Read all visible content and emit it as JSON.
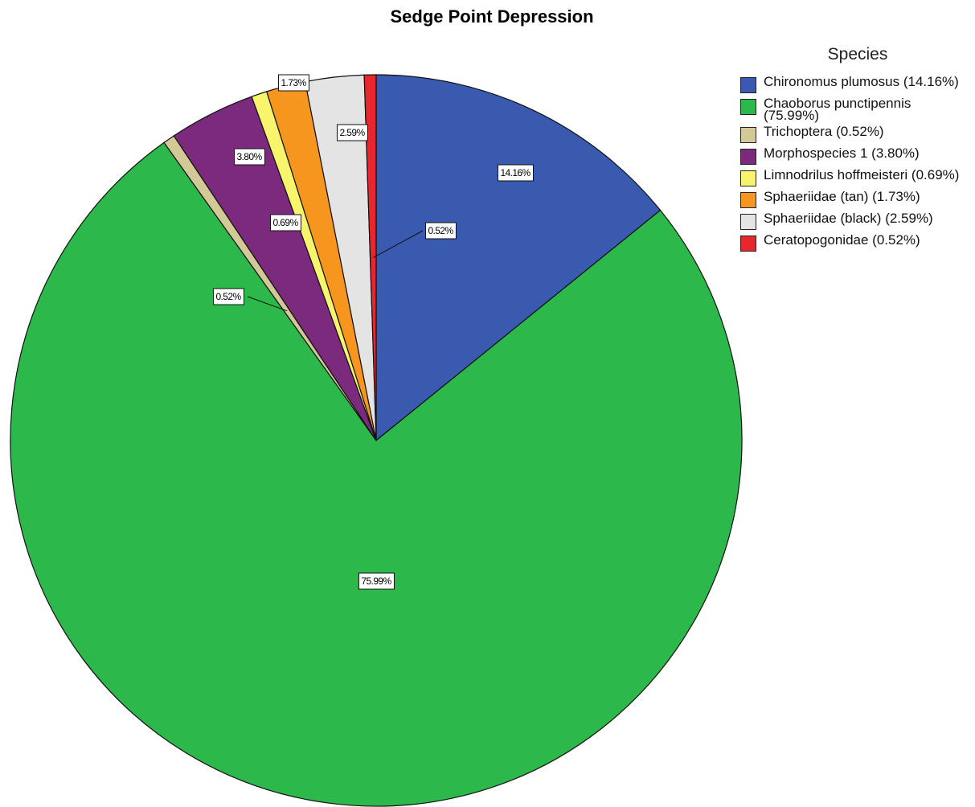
{
  "chart_data": {
    "type": "pie",
    "title": "Sedge Point Depression",
    "legend_title": "Species",
    "categories": [
      "Chironomus plumosus (14.16%)",
      "Chaoborus punctipennis (75.99%)",
      "Trichoptera (0.52%)",
      "Morphospecies 1 (3.80%)",
      "Limnodrilus hoffmeisteri (0.69%)",
      "Sphaeriidae (tan) (1.73%)",
      "Sphaeriidae (black) (2.59%)",
      "Ceratopogonidae (0.52%)"
    ],
    "values": [
      14.16,
      75.99,
      0.52,
      3.8,
      0.69,
      1.73,
      2.59,
      0.52
    ],
    "value_labels": [
      "14.16%",
      "75.99%",
      "0.52%",
      "3.80%",
      "0.69%",
      "1.73%",
      "2.59%",
      "0.52%"
    ],
    "colors": [
      "#3a5ab0",
      "#2cb84a",
      "#d3c997",
      "#7b2a7d",
      "#f8f56c",
      "#f7961e",
      "#e4e4e4",
      "#e8262e"
    ],
    "legend": "right"
  }
}
